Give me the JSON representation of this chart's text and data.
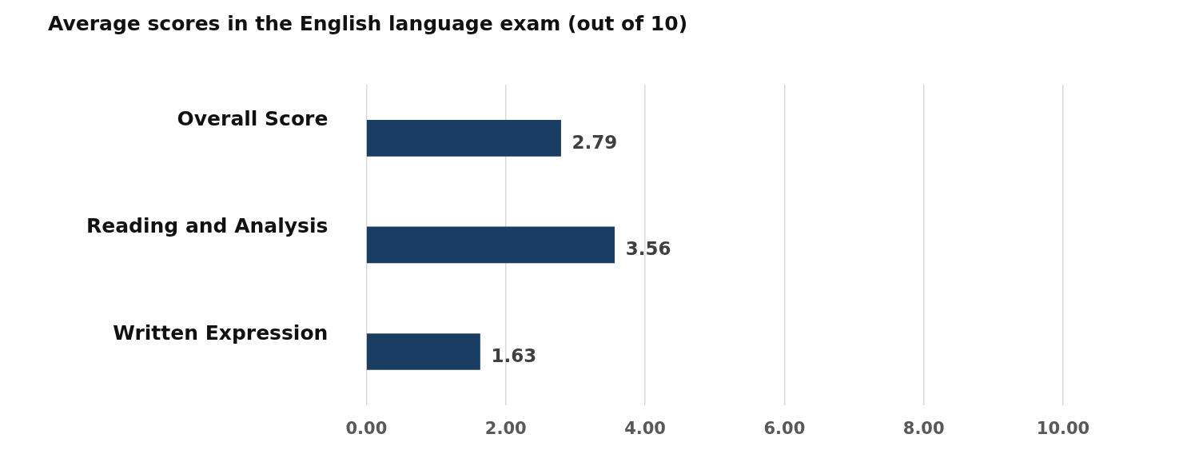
{
  "chart_data": {
    "type": "bar",
    "orientation": "horizontal",
    "title": "Average scores in the English language exam (out of 10)",
    "categories": [
      "Overall Score",
      "Reading and Analysis",
      "Written Expression"
    ],
    "values": [
      2.79,
      3.56,
      1.63
    ],
    "color": "#1a3d63",
    "data_labels": true,
    "grid": "x",
    "legend": false,
    "xlim": [
      0,
      10
    ],
    "xticks": [
      {
        "value": 0,
        "label": "0.00"
      },
      {
        "value": 2,
        "label": "2.00"
      },
      {
        "value": 4,
        "label": "4.00"
      },
      {
        "value": 6,
        "label": "6.00"
      },
      {
        "value": 8,
        "label": "8.00"
      },
      {
        "value": 10,
        "label": "10.00"
      }
    ]
  }
}
